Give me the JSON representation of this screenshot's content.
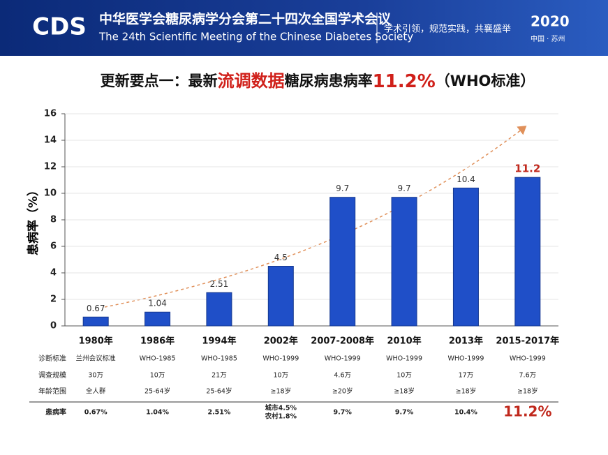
{
  "header": {
    "logo": "CDS",
    "title_cn": "中华医学会糖尿病学分会第二十四次全国学术会议",
    "title_en": "The 24th Scientific Meeting of the Chinese Diabetes Society",
    "slogan": "学术引领，规范实践，共襄盛举",
    "year": "2020",
    "city": "中国 · 苏州"
  },
  "slide_title": {
    "part1": "更新要点一：最新",
    "part2": "流调数据",
    "part3": "糖尿病患病率",
    "part4": "11.2%",
    "part5": "（WHO标准）"
  },
  "chart_data": {
    "type": "bar",
    "ylabel": "患病率（%）",
    "categories": [
      "1980年",
      "1986年",
      "1994年",
      "2002年",
      "2007-2008年",
      "2010年",
      "2013年",
      "2015-2017年"
    ],
    "values": [
      0.67,
      1.04,
      2.51,
      4.5,
      9.7,
      9.7,
      10.4,
      11.2
    ],
    "color": "#1f4fc8",
    "highlight_color": "#c0281c",
    "ylim": [
      0,
      16
    ],
    "yticks": [
      0,
      2,
      4,
      6,
      8,
      10,
      12,
      14,
      16
    ],
    "grid": true
  },
  "table": {
    "row_labels": [
      "诊断标准",
      "调查规模",
      "年龄范围",
      "患病率"
    ],
    "rows": [
      [
        "兰州会议标准",
        "WHO-1985",
        "WHO-1985",
        "WHO-1999",
        "WHO-1999",
        "WHO-1999",
        "WHO-1999",
        "WHO-1999"
      ],
      [
        "30万",
        "10万",
        "21万",
        "10万",
        "4.6万",
        "10万",
        "17万",
        "7.6万"
      ],
      [
        "全人群",
        "25-64岁",
        "25-64岁",
        "≥18岁",
        "≥20岁",
        "≥18岁",
        "≥18岁",
        "≥18岁"
      ],
      [
        "0.67%",
        "1.04%",
        "2.51%",
        [
          "城市4.5%",
          "农村1.8%"
        ],
        "9.7%",
        "9.7%",
        "10.4%",
        "11.2%"
      ]
    ]
  }
}
